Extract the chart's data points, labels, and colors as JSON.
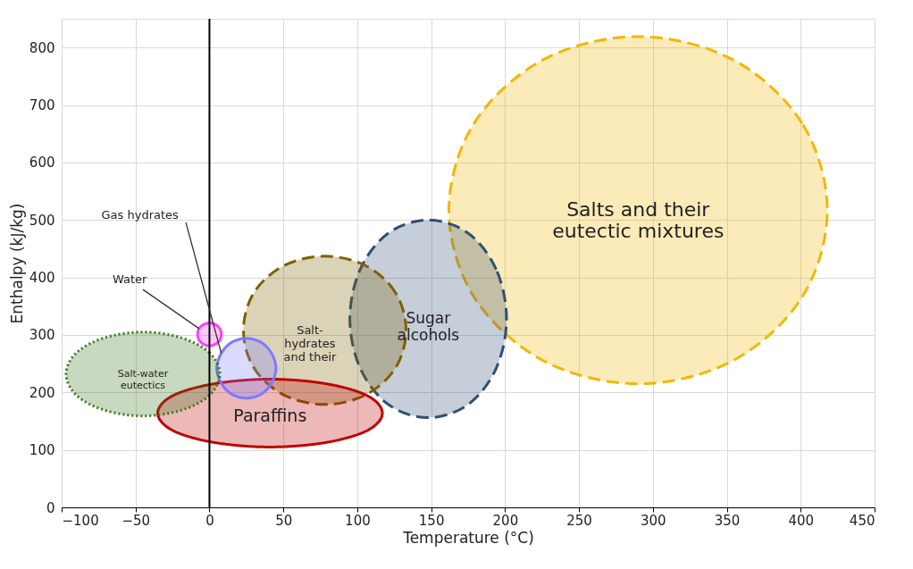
{
  "chart_data": {
    "type": "area",
    "xlabel": "Temperature (°C)",
    "ylabel": "Enthalpy (kJ/kg)",
    "xlim": [
      -100,
      450
    ],
    "xticks": [
      -100,
      -50,
      0,
      50,
      100,
      150,
      200,
      250,
      300,
      350,
      400,
      450
    ],
    "ylim": [
      0,
      850
    ],
    "yticks": [
      0,
      100,
      200,
      300,
      400,
      500,
      600,
      700,
      800
    ],
    "grid": true,
    "marker": "none",
    "ref_lines": [
      {
        "axis": "x",
        "value": 0,
        "color": "#000000"
      }
    ],
    "annotations": [
      {
        "text": "Gas hydrates",
        "x": 8,
        "y": 268
      },
      {
        "text": "Water",
        "x": -7,
        "y": 311
      }
    ],
    "series": [
      {
        "name": "Salts and their\neutectic mixtures",
        "line_style": "dashed",
        "color": "#f2b705",
        "x": [
          418,
          401,
          354,
          290,
          226,
          179,
          162,
          179,
          226,
          290,
          354,
          401
        ],
        "values": [
          517,
          668,
          779,
          819,
          779,
          668,
          517,
          366,
          255,
          215,
          255,
          366
        ]
      },
      {
        "name": "Sugar\nalcohols",
        "line_style": "dashed",
        "color": "#2e5075",
        "x": [
          201,
          194,
          175,
          148,
          121,
          102,
          95,
          102,
          121,
          148,
          175,
          194
        ],
        "values": [
          328,
          414,
          477,
          500,
          477,
          414,
          328,
          242,
          179,
          156,
          179,
          242
        ]
      },
      {
        "name": "Salt-\nhydrates\nand their",
        "line_style": "dashed",
        "color": "#7f6000",
        "x": [
          133,
          126,
          106,
          78,
          50,
          30,
          23,
          30,
          50,
          78,
          106,
          126
        ],
        "values": [
          308,
          373,
          420,
          437,
          420,
          373,
          308,
          243,
          196,
          179,
          196,
          243
        ]
      },
      {
        "name": "Paraffins",
        "line_style": "solid",
        "color": "#c00000",
        "x": [
          117,
          107,
          79,
          41,
          3,
          -25,
          -35,
          -25,
          3,
          41,
          79,
          107
        ],
        "values": [
          164,
          194,
          215,
          223,
          215,
          194,
          164,
          134,
          113,
          105,
          113,
          134
        ]
      },
      {
        "line_style": "solid",
        "color": "#7b7bff",
        "x": [
          45,
          42,
          35,
          25,
          15,
          8,
          5,
          8,
          15,
          25,
          35,
          42
        ],
        "values": [
          242,
          268,
          287,
          294,
          287,
          268,
          242,
          216,
          197,
          190,
          197,
          216
        ]
      },
      {
        "line_style": "solid",
        "color": "#ff40ff",
        "x": [
          8,
          7,
          4,
          0,
          -4,
          -7,
          -8,
          -7,
          -4,
          0,
          4,
          7
        ],
        "values": [
          301,
          311,
          318,
          321,
          318,
          311,
          301,
          291,
          284,
          281,
          284,
          291
        ]
      },
      {
        "name": "Salt-water\neutectics",
        "line_style": "dotted",
        "color": "#38761d",
        "x": [
          7,
          0,
          -19,
          -45,
          -71,
          -90,
          -97,
          -90,
          -71,
          -45,
          -19,
          0
        ],
        "values": [
          232,
          269,
          295,
          305,
          295,
          269,
          232,
          195,
          169,
          159,
          169,
          195
        ]
      }
    ]
  }
}
